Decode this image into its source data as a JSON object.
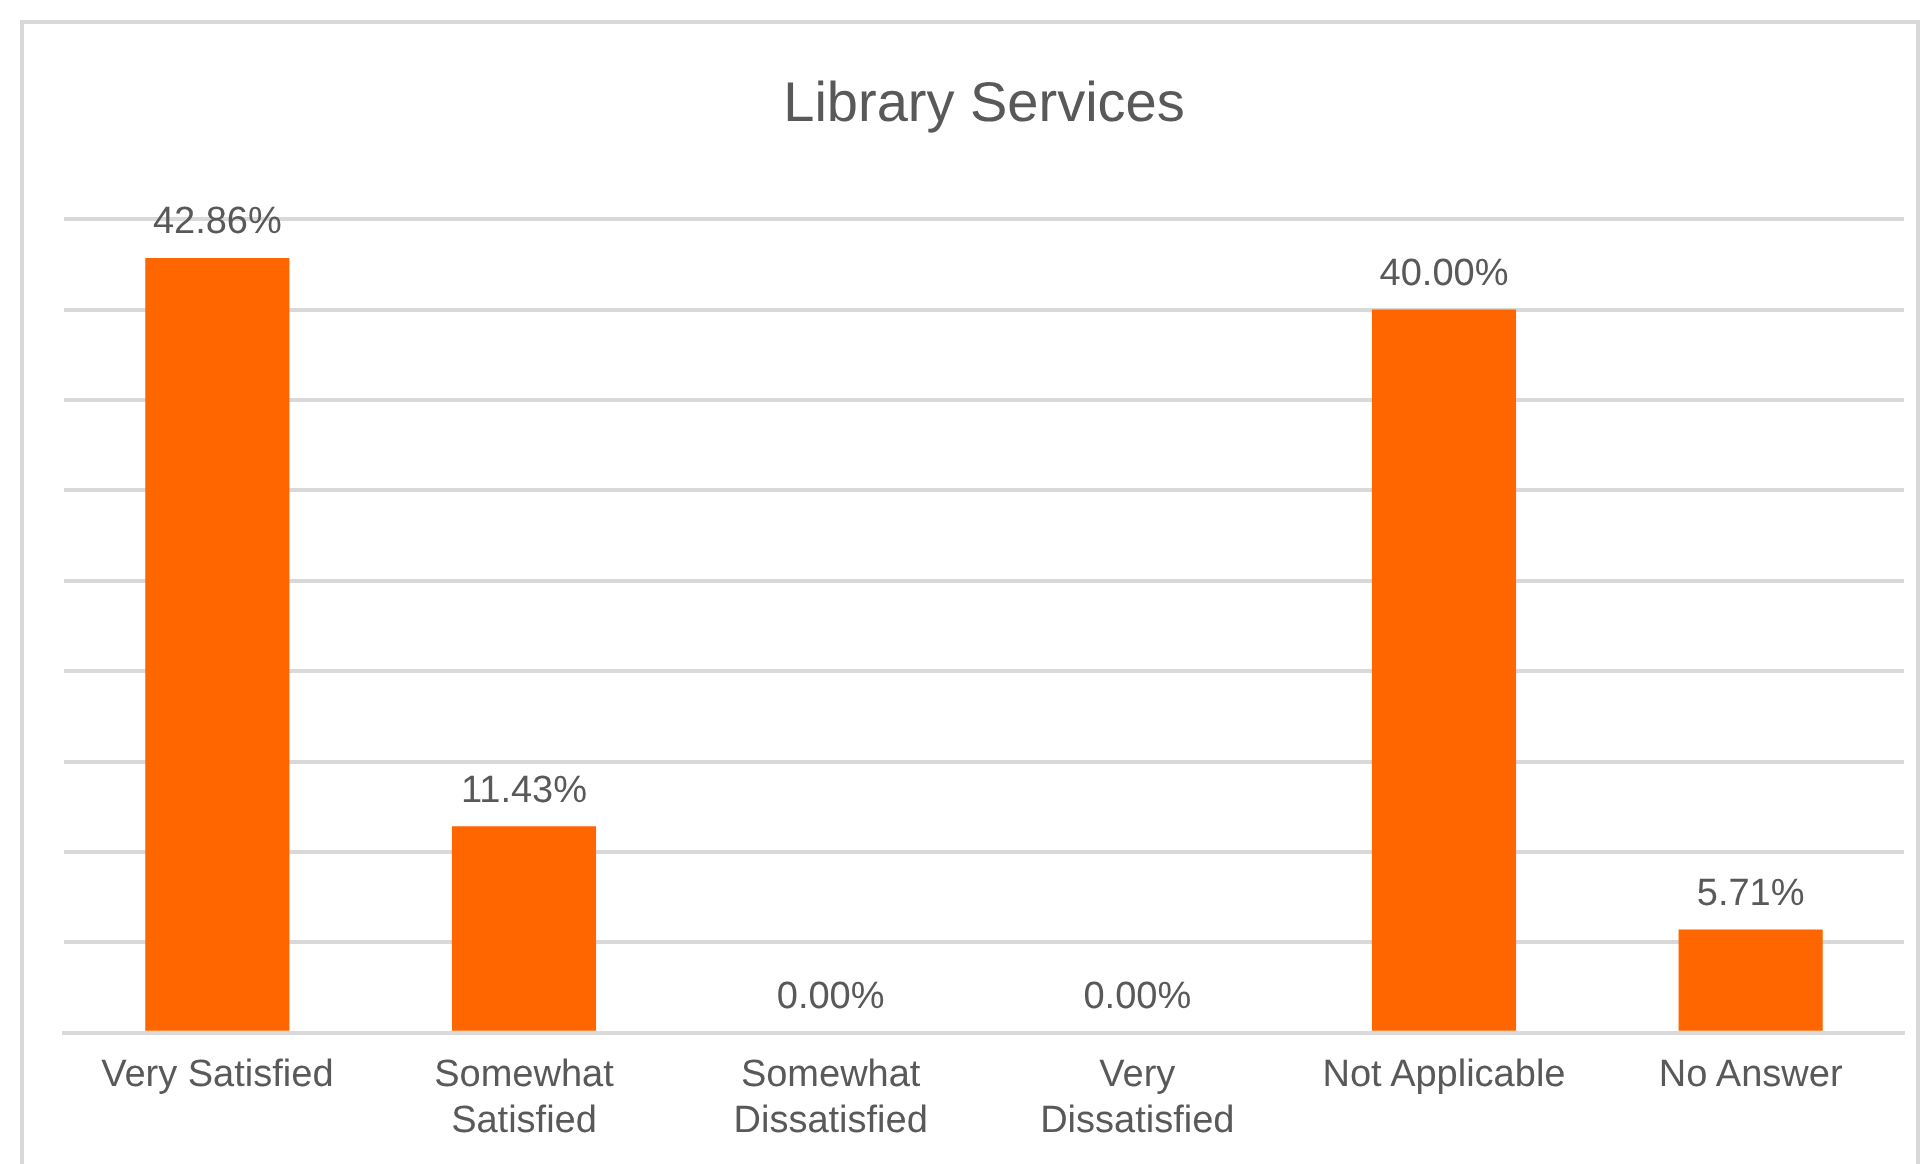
{
  "chart_data": {
    "type": "bar",
    "title": "Library Services",
    "categories": [
      "Very Satisfied",
      "Somewhat Satisfied",
      "Somewhat Dissatisfied",
      "Very Dissatisfied",
      "Not Applicable",
      "No Answer"
    ],
    "values": [
      42.86,
      11.43,
      0,
      0,
      40,
      5.71
    ],
    "value_labels": [
      "42.86%",
      "11.43%",
      "0.00%",
      "0.00%",
      "40.00%",
      "5.71%"
    ],
    "color": "#ff6600",
    "ylim": [
      0,
      45
    ],
    "yticks": [
      {
        "value": 0,
        "label": null
      },
      {
        "value": 5,
        "label": null
      },
      {
        "value": 10,
        "label": null
      },
      {
        "value": 15,
        "label": null
      },
      {
        "value": 20,
        "label": null
      },
      {
        "value": 25,
        "label": null
      },
      {
        "value": 30,
        "label": null
      },
      {
        "value": 35,
        "label": null
      },
      {
        "value": 40,
        "label": null
      },
      {
        "value": 45,
        "label": null
      }
    ],
    "grid": "y",
    "tick_labels": "x",
    "legend": false
  }
}
